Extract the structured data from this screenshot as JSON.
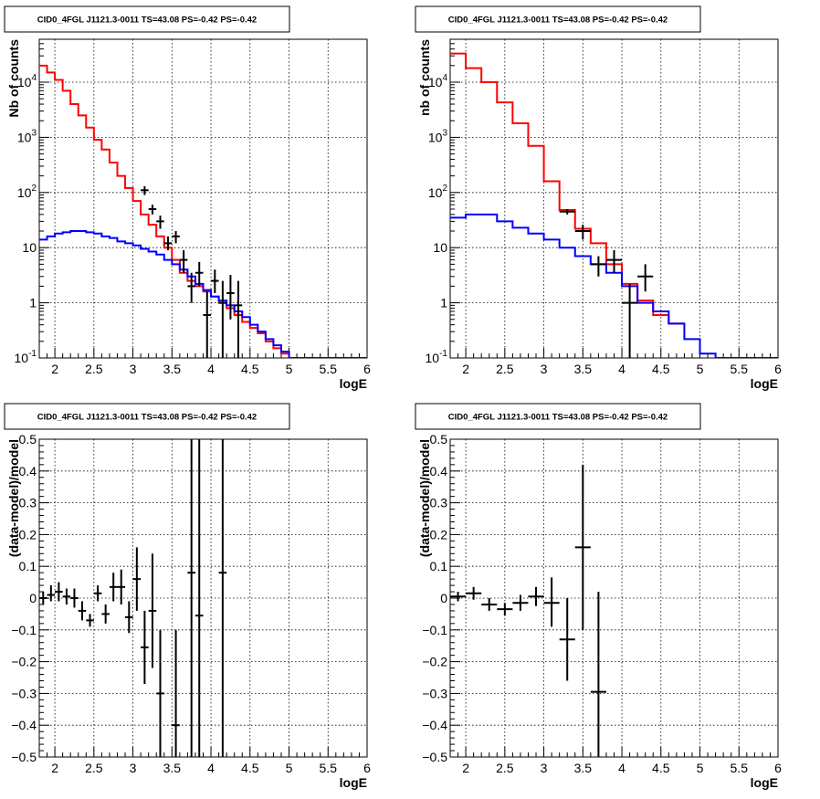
{
  "chart_data": [
    {
      "type": "line",
      "title": "CID0_4FGL J1121.3-0011 TS=43.08 PS=-0.42 PS=-0.42",
      "xlabel": "logE",
      "ylabel": "Nb of counts",
      "xlim": [
        1.8,
        6.0
      ],
      "ylim": [
        0.1,
        60000
      ],
      "yscale": "log",
      "grid": true,
      "xticks": [
        "2",
        "2.5",
        "3",
        "3.5",
        "4",
        "4.5",
        "5",
        "5.5",
        "6"
      ],
      "yticks": [
        {
          "base": "10",
          "exp": "-1"
        },
        {
          "base": "1",
          "exp": ""
        },
        {
          "base": "10",
          "exp": ""
        },
        {
          "base": "10",
          "exp": "2"
        },
        {
          "base": "10",
          "exp": "3"
        },
        {
          "base": "10",
          "exp": "4"
        }
      ],
      "bin_width": 0.1,
      "series": [
        {
          "color": "#ff0000",
          "x": [
            1.8,
            1.9,
            2.0,
            2.1,
            2.2,
            2.3,
            2.4,
            2.5,
            2.6,
            2.7,
            2.8,
            2.9,
            3.0,
            3.1,
            3.2,
            3.3,
            3.4,
            3.5,
            3.6,
            3.7,
            3.8,
            3.9,
            4.0,
            4.1,
            4.2,
            4.3,
            4.4,
            4.5,
            4.6,
            4.7,
            4.8,
            4.9
          ],
          "values": [
            20000,
            15000,
            11000,
            7000,
            4000,
            2500,
            1500,
            900,
            600,
            350,
            200,
            120,
            70,
            40,
            26,
            16,
            10,
            6,
            3.5,
            2.5,
            2,
            1.6,
            1.3,
            1.0,
            0.8,
            0.6,
            0.45,
            0.35,
            0.28,
            0.2,
            0.15,
            0.12
          ]
        },
        {
          "color": "#0000ff",
          "x": [
            1.8,
            1.9,
            2.0,
            2.1,
            2.2,
            2.3,
            2.4,
            2.5,
            2.6,
            2.7,
            2.8,
            2.9,
            3.0,
            3.1,
            3.2,
            3.3,
            3.4,
            3.5,
            3.6,
            3.7,
            3.8,
            3.9,
            4.0,
            4.1,
            4.2,
            4.3,
            4.4,
            4.5,
            4.6,
            4.7,
            4.8,
            4.9,
            5.0,
            5.1,
            5.2,
            5.3,
            5.4,
            5.5,
            5.6,
            5.7,
            5.8,
            5.9
          ],
          "values": [
            14,
            16,
            18,
            19,
            20,
            20,
            19,
            18,
            16,
            15,
            13,
            12,
            11,
            9.5,
            8.5,
            7.5,
            6,
            5,
            4,
            3,
            2.2,
            1.7,
            1.3,
            1.1,
            0.9,
            0.7,
            0.55,
            0.4,
            0.3,
            0.22,
            0.17,
            0.13,
            0.1,
            0.1,
            0.1,
            0.1,
            0.1,
            0.1,
            0.1,
            0.1,
            0.1,
            0.1
          ]
        }
      ],
      "data_points": {
        "x": [
          3.15,
          3.25,
          3.35,
          3.45,
          3.55,
          3.65,
          3.75,
          3.85,
          3.95,
          4.05,
          4.15,
          4.25,
          4.35
        ],
        "y": [
          110,
          50,
          30,
          12,
          16,
          6,
          2,
          3.5,
          0.6,
          2.5,
          1,
          1.5,
          0.9
        ],
        "lo": [
          90,
          40,
          22,
          9,
          12,
          3.5,
          1,
          2,
          0.1,
          1.5,
          0.1,
          0.5,
          0.1
        ],
        "hi": [
          130,
          60,
          38,
          16,
          20,
          9,
          3.5,
          5.5,
          1.6,
          4,
          2.5,
          3.2,
          2.5
        ]
      }
    },
    {
      "type": "line",
      "title": "CID0_4FGL J1121.3-0011 TS=43.08 PS=-0.42 PS=-0.42",
      "xlabel": "logE",
      "ylabel": "nb of counts",
      "xlim": [
        1.8,
        6.0
      ],
      "ylim": [
        0.1,
        60000
      ],
      "yscale": "log",
      "grid": true,
      "xticks": [
        "2",
        "2.5",
        "3",
        "3.5",
        "4",
        "4.5",
        "5",
        "5.5",
        "6"
      ],
      "yticks": [
        {
          "base": "10",
          "exp": "-1"
        },
        {
          "base": "1",
          "exp": ""
        },
        {
          "base": "10",
          "exp": ""
        },
        {
          "base": "10",
          "exp": "2"
        },
        {
          "base": "10",
          "exp": "3"
        },
        {
          "base": "10",
          "exp": "4"
        }
      ],
      "bin_width": 0.2,
      "series": [
        {
          "color": "#ff0000",
          "x": [
            1.8,
            2.0,
            2.2,
            2.4,
            2.6,
            2.8,
            3.0,
            3.2,
            3.4,
            3.6,
            3.8,
            4.0,
            4.2,
            4.4,
            4.6
          ],
          "values": [
            33000,
            18000,
            10000,
            4300,
            1800,
            700,
            160,
            48,
            22,
            12,
            5,
            2.2,
            1.1,
            0.6,
            0.42
          ]
        },
        {
          "color": "#0000ff",
          "x": [
            1.8,
            2.0,
            2.2,
            2.4,
            2.6,
            2.8,
            3.0,
            3.2,
            3.4,
            3.6,
            3.8,
            4.0,
            4.2,
            4.4,
            4.6,
            4.8,
            5.0,
            5.2,
            5.4,
            5.6,
            5.8
          ],
          "values": [
            35,
            40,
            40,
            30,
            23,
            18,
            14,
            10,
            7,
            5,
            3.5,
            2,
            1,
            0.7,
            0.42,
            0.22,
            0.12,
            0.1,
            0.1,
            0.1,
            0.1
          ]
        }
      ],
      "data_points": {
        "x": [
          3.3,
          3.5,
          3.7,
          3.9,
          4.1,
          4.3
        ],
        "y": [
          45,
          20,
          5,
          6,
          1,
          3
        ],
        "lo": [
          40,
          14,
          3,
          3.5,
          0.1,
          1.6
        ],
        "hi": [
          50,
          26,
          7,
          9,
          2.2,
          5
        ]
      }
    },
    {
      "type": "scatter",
      "title": "CID0_4FGL J1121.3-0011 TS=43.08 PS=-0.42 PS=-0.42",
      "xlabel": "logE",
      "ylabel": "(data-model)/model",
      "xlim": [
        1.8,
        6.0
      ],
      "ylim": [
        -0.5,
        0.5
      ],
      "grid": true,
      "xticks": [
        "2",
        "2.5",
        "3",
        "3.5",
        "4",
        "4.5",
        "5",
        "5.5",
        "6"
      ],
      "yticks": [
        "-0.5",
        "-0.4",
        "-0.3",
        "-0.2",
        "-0.1",
        "0",
        "0.1",
        "0.2",
        "0.3",
        "0.4",
        "0.5"
      ],
      "bin_width": 0.1,
      "points": {
        "x": [
          1.85,
          1.95,
          2.05,
          2.15,
          2.25,
          2.35,
          2.45,
          2.55,
          2.65,
          2.75,
          2.85,
          2.95,
          3.05,
          3.15,
          3.25,
          3.35,
          3.55,
          3.75,
          3.85,
          4.15
        ],
        "y": [
          0.0,
          0.01,
          0.02,
          0.005,
          0.0,
          -0.04,
          -0.07,
          0.015,
          -0.05,
          0.035,
          0.035,
          -0.06,
          0.06,
          -0.155,
          -0.04,
          -0.3,
          -0.4,
          0.08,
          -0.055,
          0.08
        ],
        "lo": [
          -0.02,
          -0.01,
          -0.01,
          -0.02,
          -0.03,
          -0.07,
          -0.09,
          -0.01,
          -0.08,
          -0.01,
          -0.02,
          -0.11,
          -0.04,
          -0.27,
          -0.22,
          -0.5,
          -0.5,
          -0.5,
          -0.5,
          -0.5
        ],
        "hi": [
          0.02,
          0.04,
          0.05,
          0.03,
          0.03,
          -0.01,
          -0.05,
          0.04,
          -0.02,
          0.08,
          0.09,
          -0.01,
          0.16,
          -0.04,
          0.14,
          -0.1,
          -0.1,
          0.5,
          0.5,
          0.5
        ]
      }
    },
    {
      "type": "scatter",
      "title": "CID0_4FGL J1121.3-0011 TS=43.08 PS=-0.42 PS=-0.42",
      "xlabel": "logE",
      "ylabel": "(data-model)/model",
      "xlim": [
        1.8,
        6.0
      ],
      "ylim": [
        -0.5,
        0.5
      ],
      "grid": true,
      "xticks": [
        "2",
        "2.5",
        "3",
        "3.5",
        "4",
        "4.5",
        "5",
        "5.5",
        "6"
      ],
      "yticks": [
        "-0.5",
        "-0.4",
        "-0.3",
        "-0.2",
        "-0.1",
        "0",
        "0.1",
        "0.2",
        "0.3",
        "0.4",
        "0.5"
      ],
      "bin_width": 0.2,
      "points": {
        "x": [
          1.9,
          2.1,
          2.3,
          2.5,
          2.7,
          2.9,
          3.1,
          3.3,
          3.5,
          3.7
        ],
        "y": [
          0.005,
          0.015,
          -0.02,
          -0.035,
          -0.015,
          0.005,
          -0.015,
          -0.13,
          0.16,
          -0.295
        ],
        "lo": [
          -0.01,
          -0.005,
          -0.04,
          -0.055,
          -0.04,
          -0.025,
          -0.09,
          -0.26,
          -0.1,
          -0.5
        ],
        "hi": [
          0.02,
          0.035,
          0.0,
          -0.015,
          0.01,
          0.035,
          0.065,
          0.0,
          0.42,
          0.02
        ]
      }
    }
  ]
}
